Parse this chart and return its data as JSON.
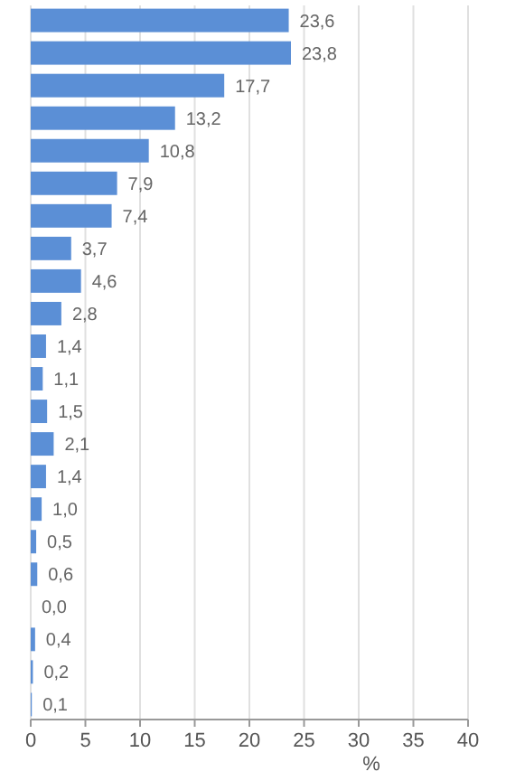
{
  "chart_data": {
    "type": "bar",
    "orientation": "horizontal",
    "xlabel": "%",
    "categories": [
      null,
      null,
      null,
      null,
      null,
      null,
      null,
      null,
      null,
      null,
      null,
      null,
      null,
      null,
      null,
      null,
      null,
      null,
      null,
      null,
      null,
      null
    ],
    "values": [
      23.6,
      23.8,
      17.7,
      13.2,
      10.8,
      7.9,
      7.4,
      3.7,
      4.6,
      2.8,
      1.4,
      1.1,
      1.5,
      2.1,
      1.4,
      1.0,
      0.5,
      0.6,
      0.0,
      0.4,
      0.2,
      0.1
    ],
    "value_labels": [
      "23,6",
      "23,8",
      "17,7",
      "13,2",
      "10,8",
      "7,9",
      "7,4",
      "3,7",
      "4,6",
      "2,8",
      "1,4",
      "1,1",
      "1,5",
      "2,1",
      "1,4",
      "1,0",
      "0,5",
      "0,6",
      "0,0",
      "0,4",
      "0,2",
      "0,1"
    ],
    "color": "#5b8fd6",
    "xlim": [
      0,
      40
    ],
    "xticks": [
      0,
      5,
      10,
      15,
      20,
      25,
      30,
      35,
      40
    ],
    "grid": "x"
  }
}
